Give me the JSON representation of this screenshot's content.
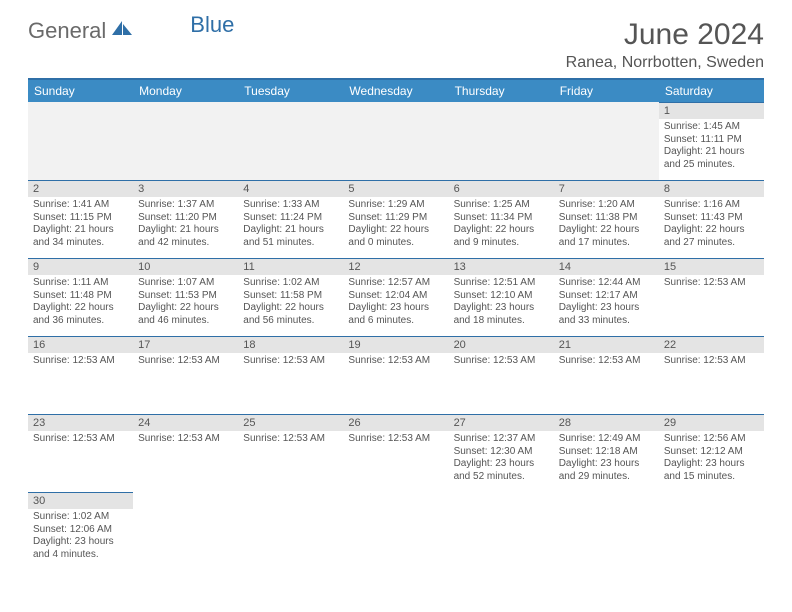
{
  "logo": {
    "part1": "General",
    "part2": "Blue"
  },
  "title": "June 2024",
  "subtitle": "Ranea, Norrbotten, Sweden",
  "colors": {
    "header_bg": "#3b8bc4",
    "rule": "#2f6fa7",
    "day_header_bg": "#e4e4e4",
    "text": "#555555"
  },
  "weekdays": [
    "Sunday",
    "Monday",
    "Tuesday",
    "Wednesday",
    "Thursday",
    "Friday",
    "Saturday"
  ],
  "weeks": [
    [
      {
        "blank": true
      },
      {
        "blank": true
      },
      {
        "blank": true
      },
      {
        "blank": true
      },
      {
        "blank": true
      },
      {
        "blank": true
      },
      {
        "n": "1",
        "l1": "Sunrise: 1:45 AM",
        "l2": "Sunset: 11:11 PM",
        "l3": "Daylight: 21 hours",
        "l4": "and 25 minutes."
      }
    ],
    [
      {
        "n": "2",
        "l1": "Sunrise: 1:41 AM",
        "l2": "Sunset: 11:15 PM",
        "l3": "Daylight: 21 hours",
        "l4": "and 34 minutes."
      },
      {
        "n": "3",
        "l1": "Sunrise: 1:37 AM",
        "l2": "Sunset: 11:20 PM",
        "l3": "Daylight: 21 hours",
        "l4": "and 42 minutes."
      },
      {
        "n": "4",
        "l1": "Sunrise: 1:33 AM",
        "l2": "Sunset: 11:24 PM",
        "l3": "Daylight: 21 hours",
        "l4": "and 51 minutes."
      },
      {
        "n": "5",
        "l1": "Sunrise: 1:29 AM",
        "l2": "Sunset: 11:29 PM",
        "l3": "Daylight: 22 hours",
        "l4": "and 0 minutes."
      },
      {
        "n": "6",
        "l1": "Sunrise: 1:25 AM",
        "l2": "Sunset: 11:34 PM",
        "l3": "Daylight: 22 hours",
        "l4": "and 9 minutes."
      },
      {
        "n": "7",
        "l1": "Sunrise: 1:20 AM",
        "l2": "Sunset: 11:38 PM",
        "l3": "Daylight: 22 hours",
        "l4": "and 17 minutes."
      },
      {
        "n": "8",
        "l1": "Sunrise: 1:16 AM",
        "l2": "Sunset: 11:43 PM",
        "l3": "Daylight: 22 hours",
        "l4": "and 27 minutes."
      }
    ],
    [
      {
        "n": "9",
        "l1": "Sunrise: 1:11 AM",
        "l2": "Sunset: 11:48 PM",
        "l3": "Daylight: 22 hours",
        "l4": "and 36 minutes."
      },
      {
        "n": "10",
        "l1": "Sunrise: 1:07 AM",
        "l2": "Sunset: 11:53 PM",
        "l3": "Daylight: 22 hours",
        "l4": "and 46 minutes."
      },
      {
        "n": "11",
        "l1": "Sunrise: 1:02 AM",
        "l2": "Sunset: 11:58 PM",
        "l3": "Daylight: 22 hours",
        "l4": "and 56 minutes."
      },
      {
        "n": "12",
        "l1": "Sunrise: 12:57 AM",
        "l2": "Sunset: 12:04 AM",
        "l3": "Daylight: 23 hours",
        "l4": "and 6 minutes."
      },
      {
        "n": "13",
        "l1": "Sunrise: 12:51 AM",
        "l2": "Sunset: 12:10 AM",
        "l3": "Daylight: 23 hours",
        "l4": "and 18 minutes."
      },
      {
        "n": "14",
        "l1": "Sunrise: 12:44 AM",
        "l2": "Sunset: 12:17 AM",
        "l3": "Daylight: 23 hours",
        "l4": "and 33 minutes."
      },
      {
        "n": "15",
        "l1": "Sunrise: 12:53 AM",
        "l2": "",
        "l3": "",
        "l4": ""
      }
    ],
    [
      {
        "n": "16",
        "l1": "Sunrise: 12:53 AM",
        "l2": "",
        "l3": "",
        "l4": ""
      },
      {
        "n": "17",
        "l1": "Sunrise: 12:53 AM",
        "l2": "",
        "l3": "",
        "l4": ""
      },
      {
        "n": "18",
        "l1": "Sunrise: 12:53 AM",
        "l2": "",
        "l3": "",
        "l4": ""
      },
      {
        "n": "19",
        "l1": "Sunrise: 12:53 AM",
        "l2": "",
        "l3": "",
        "l4": ""
      },
      {
        "n": "20",
        "l1": "Sunrise: 12:53 AM",
        "l2": "",
        "l3": "",
        "l4": ""
      },
      {
        "n": "21",
        "l1": "Sunrise: 12:53 AM",
        "l2": "",
        "l3": "",
        "l4": ""
      },
      {
        "n": "22",
        "l1": "Sunrise: 12:53 AM",
        "l2": "",
        "l3": "",
        "l4": ""
      }
    ],
    [
      {
        "n": "23",
        "l1": "Sunrise: 12:53 AM",
        "l2": "",
        "l3": "",
        "l4": ""
      },
      {
        "n": "24",
        "l1": "Sunrise: 12:53 AM",
        "l2": "",
        "l3": "",
        "l4": ""
      },
      {
        "n": "25",
        "l1": "Sunrise: 12:53 AM",
        "l2": "",
        "l3": "",
        "l4": ""
      },
      {
        "n": "26",
        "l1": "Sunrise: 12:53 AM",
        "l2": "",
        "l3": "",
        "l4": ""
      },
      {
        "n": "27",
        "l1": "Sunrise: 12:37 AM",
        "l2": "Sunset: 12:30 AM",
        "l3": "Daylight: 23 hours",
        "l4": "and 52 minutes."
      },
      {
        "n": "28",
        "l1": "Sunrise: 12:49 AM",
        "l2": "Sunset: 12:18 AM",
        "l3": "Daylight: 23 hours",
        "l4": "and 29 minutes."
      },
      {
        "n": "29",
        "l1": "Sunrise: 12:56 AM",
        "l2": "Sunset: 12:12 AM",
        "l3": "Daylight: 23 hours",
        "l4": "and 15 minutes."
      }
    ],
    [
      {
        "n": "30",
        "l1": "Sunrise: 1:02 AM",
        "l2": "Sunset: 12:06 AM",
        "l3": "Daylight: 23 hours",
        "l4": "and 4 minutes."
      },
      {
        "blank": true
      },
      {
        "blank": true
      },
      {
        "blank": true
      },
      {
        "blank": true
      },
      {
        "blank": true
      },
      {
        "blank": true
      }
    ]
  ]
}
